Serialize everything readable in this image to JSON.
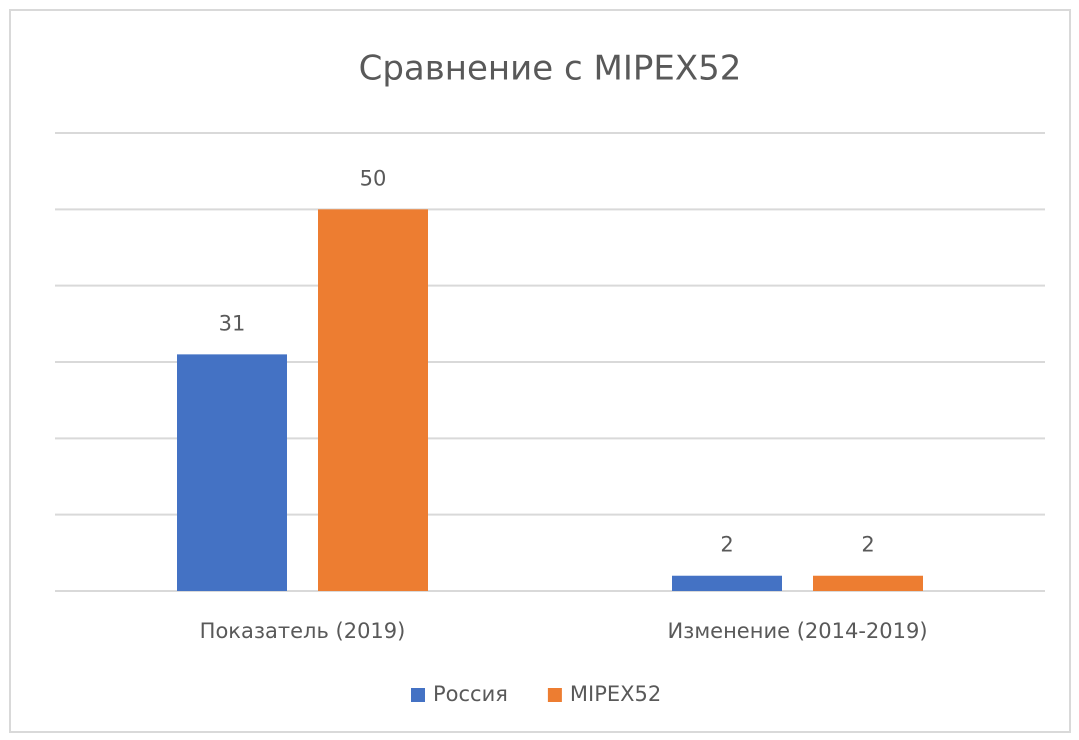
{
  "chart_data": {
    "type": "bar",
    "title": "Сравнение с MIPEX52",
    "categories": [
      "Показатель (2019)",
      "Изменение (2014-2019)"
    ],
    "series": [
      {
        "name": "Россия",
        "color": "#4472c4",
        "values": [
          31,
          2
        ]
      },
      {
        "name": "MIPEX52",
        "color": "#ed7d31",
        "values": [
          50,
          2
        ]
      }
    ],
    "ylim": [
      0,
      60
    ],
    "yticks": [
      0,
      10,
      20,
      30,
      40,
      50,
      60
    ],
    "grid": true,
    "legend": "bottom"
  }
}
